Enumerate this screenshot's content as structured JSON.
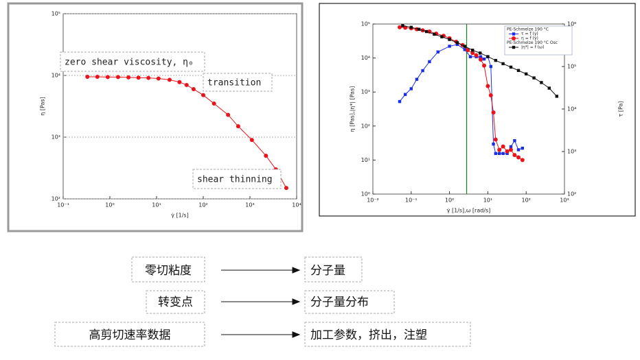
{
  "chart_data": [
    {
      "type": "line",
      "xscale": "log",
      "yscale": "log",
      "xlabel": "γ̇  [1/s]",
      "ylabel": "η [Pas]",
      "xlim": [
        0.1,
        10000
      ],
      "ylim": [
        100,
        100000
      ],
      "xticks": [
        {
          "value": 0.1,
          "label": "10⁻¹"
        },
        {
          "value": 1,
          "label": "10⁰"
        },
        {
          "value": 10,
          "label": "10¹"
        },
        {
          "value": 100,
          "label": "10²"
        },
        {
          "value": 1000,
          "label": "10³"
        },
        {
          "value": 10000,
          "label": "10⁴"
        }
      ],
      "yticks": [
        {
          "value": 100,
          "label": "10²"
        },
        {
          "value": 1000,
          "label": "10³"
        },
        {
          "value": 10000,
          "label": "10⁴"
        },
        {
          "value": 100000,
          "label": "10⁵"
        }
      ],
      "grid": "y",
      "annotations": [
        "zero shear viscosity, η₀",
        "transition",
        "shear thinning"
      ],
      "series": [
        {
          "color": "#e8141b",
          "marker": "circle",
          "x": [
            0.33,
            0.54,
            0.9,
            1.5,
            2.5,
            4.1,
            6.7,
            11,
            19,
            31,
            44,
            62,
            100,
            170,
            340,
            560,
            1100,
            2200,
            3600,
            6000
          ],
          "values": [
            9500,
            9500,
            9400,
            9400,
            9300,
            9200,
            9100,
            8900,
            8500,
            7800,
            7000,
            6000,
            4800,
            3500,
            2300,
            1500,
            900,
            500,
            300,
            150
          ]
        }
      ]
    },
    {
      "type": "line",
      "xscale": "log",
      "yscale": "log",
      "xlabel": "γ̇  [1/s],ω  [rad/s]",
      "ylabel": "η  [Pas],|η*|  [Pas]",
      "y2label": "τ  [Pa]",
      "xlim": [
        0.01,
        1000
      ],
      "ylim": [
        1,
        100000
      ],
      "y2lim": [
        100,
        1000000
      ],
      "xticks": [
        {
          "value": 0.01,
          "label": "10⁻²"
        },
        {
          "value": 0.1,
          "label": "10⁻¹"
        },
        {
          "value": 1,
          "label": "10⁰"
        },
        {
          "value": 10,
          "label": "10¹"
        },
        {
          "value": 100,
          "label": "10²"
        },
        {
          "value": 1000,
          "label": "10³"
        }
      ],
      "yticks": [
        {
          "value": 1,
          "label": "10⁰"
        },
        {
          "value": 10,
          "label": "10¹"
        },
        {
          "value": 100,
          "label": "10²"
        },
        {
          "value": 1000,
          "label": "10³"
        },
        {
          "value": 10000,
          "label": "10⁴"
        },
        {
          "value": 100000,
          "label": "10⁵"
        }
      ],
      "y2ticks": [
        {
          "value": 100,
          "label": "10²"
        },
        {
          "value": 1000,
          "label": "10³"
        },
        {
          "value": 10000,
          "label": "10⁴"
        },
        {
          "value": 100000,
          "label": "10⁵"
        },
        {
          "value": 1000000,
          "label": "10⁶"
        }
      ],
      "vline": {
        "x": 2.8,
        "color": "#138a13"
      },
      "legend_groups": [
        "PE-Schmelze 190 °C",
        "PE-Schmelze 190 °C Osc"
      ],
      "series": [
        {
          "name": "τ = f (γ̇)",
          "color": "#1a2ee8",
          "marker": "square",
          "axis": "y2",
          "x": [
            0.05,
            0.07,
            0.1,
            0.14,
            0.2,
            0.3,
            0.5,
            1,
            1.6,
            2.5,
            3.5,
            5,
            6.5,
            8,
            10,
            12,
            14,
            16,
            20,
            25,
            32,
            40,
            50,
            63,
            80
          ],
          "values": [
            15000,
            22000,
            30000,
            50000,
            80000,
            130000,
            220000,
            300000,
            330000,
            250000,
            170000,
            170000,
            170000,
            150000,
            170000,
            100000,
            1500,
            900,
            900,
            900,
            900,
            1300,
            1800,
            1100,
            1200
          ]
        },
        {
          "name": "η = f (γ̇)",
          "color": "#e8141b",
          "marker": "circle",
          "x": [
            0.05,
            0.07,
            0.1,
            0.14,
            0.2,
            0.3,
            0.45,
            0.7,
            1,
            1.5,
            2.2,
            3,
            4,
            5,
            6.5,
            8,
            10,
            12,
            14,
            16,
            20,
            25,
            32,
            40,
            50,
            63,
            80
          ],
          "values": [
            80000,
            78000,
            75000,
            70000,
            65000,
            60000,
            52000,
            45000,
            38000,
            30000,
            24000,
            17000,
            14000,
            12000,
            9000,
            6000,
            1500,
            800,
            250,
            40,
            20,
            25,
            18,
            20,
            14,
            12,
            10
          ]
        },
        {
          "name": "|η*| = f (ω)",
          "color": "#111111",
          "marker": "square",
          "x": [
            0.06,
            0.1,
            0.16,
            0.25,
            0.4,
            0.63,
            1,
            1.6,
            2.5,
            4,
            6.3,
            10,
            16,
            25,
            40,
            63,
            100,
            160,
            250,
            400,
            630
          ],
          "values": [
            90000,
            80000,
            70000,
            60000,
            50000,
            42000,
            35000,
            28000,
            22000,
            17000,
            14000,
            11000,
            8500,
            6800,
            5400,
            4300,
            3400,
            2600,
            1900,
            1300,
            750
          ]
        }
      ]
    }
  ],
  "mapping": [
    {
      "from": "零切粘度",
      "to": "分子量"
    },
    {
      "from": "转变点",
      "to": "分子量分布"
    },
    {
      "from": "高剪切速率数据",
      "to": "加工参数，挤出，注塑"
    }
  ]
}
